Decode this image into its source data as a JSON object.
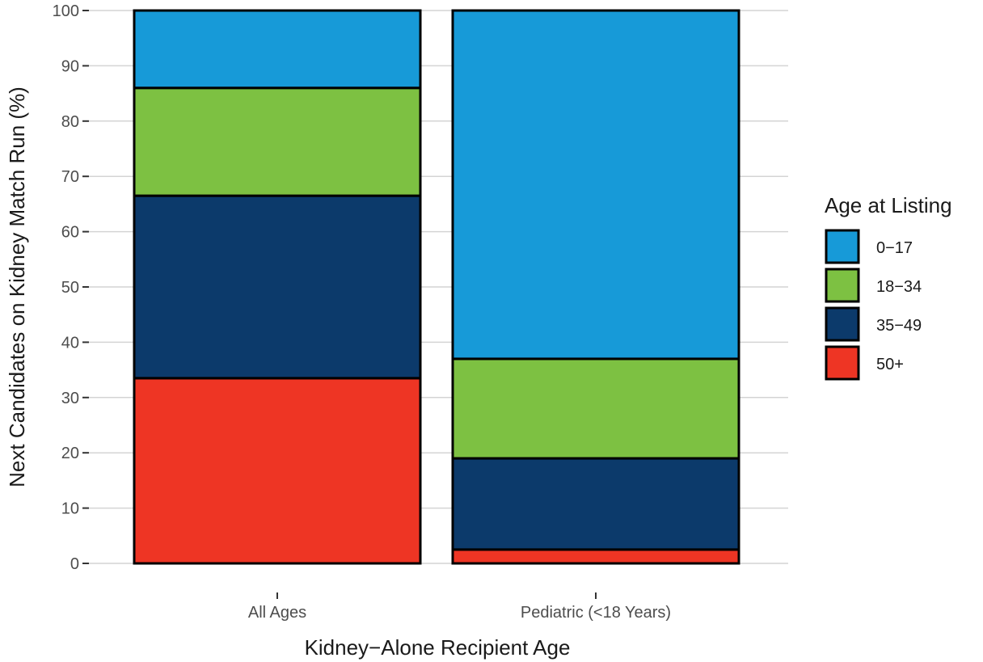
{
  "chart_data": {
    "type": "bar",
    "stacked": true,
    "categories": [
      "All Ages",
      "Pediatric (<18 Years)"
    ],
    "series": [
      {
        "name": "50+",
        "color": "#ee3524",
        "values": [
          33.5,
          2.5
        ]
      },
      {
        "name": "35-49",
        "color": "#0c3a6b",
        "values": [
          33.0,
          16.5
        ]
      },
      {
        "name": "18-34",
        "color": "#7dc142",
        "values": [
          19.5,
          18.0
        ]
      },
      {
        "name": "0-17",
        "color": "#179ad8",
        "values": [
          14.0,
          63.0
        ]
      }
    ],
    "xlabel": "Kidney−Alone Recipient Age",
    "ylabel": "Next Candidates on Kidney Match Run (%)",
    "ylim": [
      0,
      100
    ],
    "yticks": [
      0,
      10,
      20,
      30,
      40,
      50,
      60,
      70,
      80,
      90,
      100
    ],
    "grid": true,
    "legend": {
      "title": "Age at Listing",
      "position": "right",
      "items": [
        {
          "label": "0−17",
          "color": "#179ad8"
        },
        {
          "label": "18−34",
          "color": "#7dc142"
        },
        {
          "label": "35−49",
          "color": "#0c3a6b"
        },
        {
          "label": "50+",
          "color": "#ee3524"
        }
      ]
    }
  }
}
